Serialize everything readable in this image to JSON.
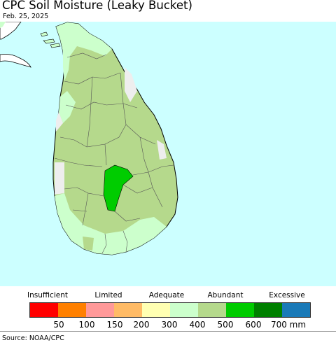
{
  "title": "CPC Soil Moisture (Leaky Bucket)",
  "date": "Feb. 25, 2025",
  "source": "Source: NOAA/CPC",
  "colors": {
    "ocean": "#ccffff",
    "land_outside": "#ffffff",
    "no_data": "#eeeeee",
    "light_green": "#ccffcc",
    "medium_green": "#b5d98c",
    "bright_green": "#00cc00"
  },
  "legend": {
    "categories": [
      "Insufficient",
      "Limited",
      "Adequate",
      "Abundant",
      "Excessive"
    ],
    "swatches": [
      "#ff0000",
      "#ff8000",
      "#ff9999",
      "#ffbb66",
      "#ffffb2",
      "#ccffcc",
      "#b5d98c",
      "#00cc00",
      "#008000",
      "#1a7ab8"
    ],
    "ticks": [
      "50",
      "100",
      "150",
      "200",
      "300",
      "400",
      "500",
      "600",
      "700 mm"
    ]
  }
}
